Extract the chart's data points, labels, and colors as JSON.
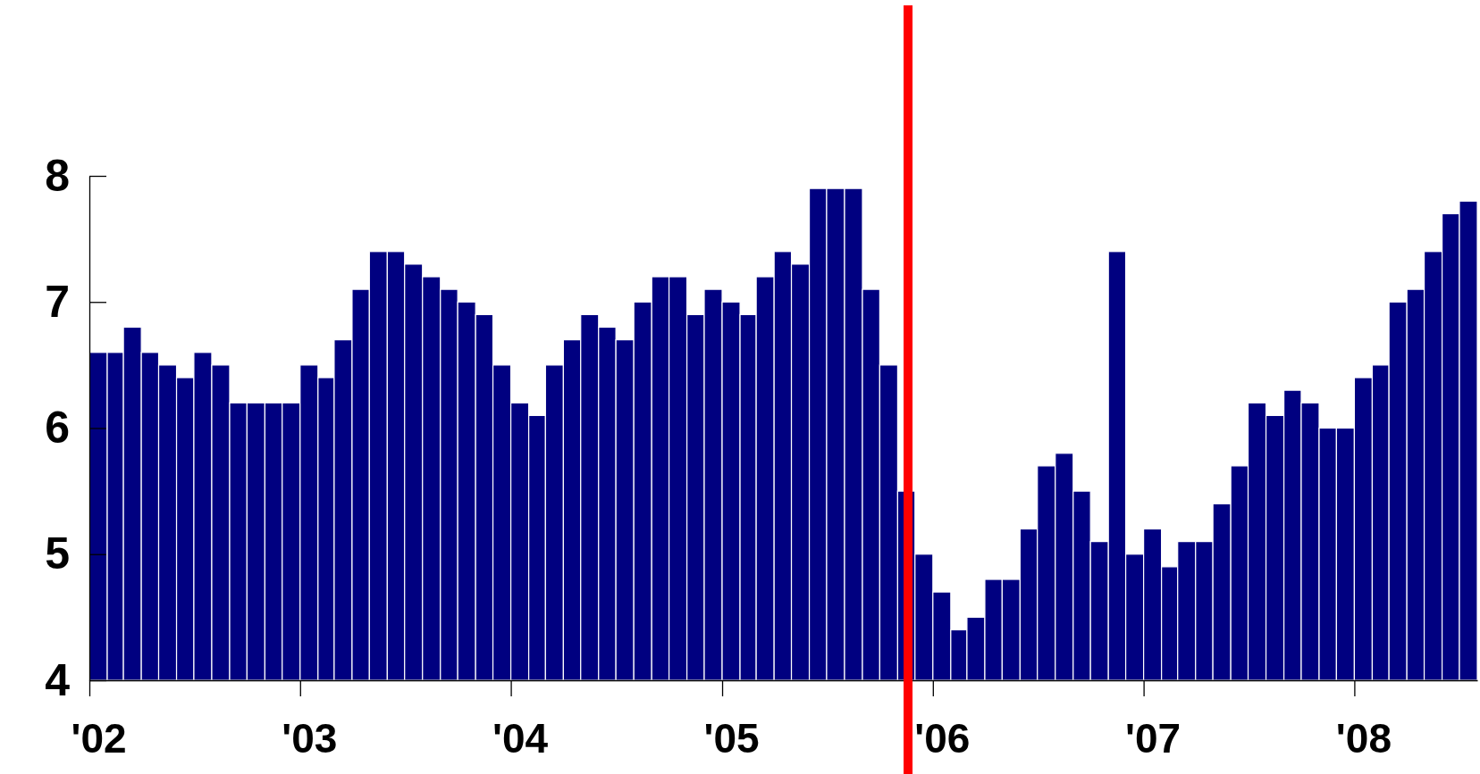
{
  "chart_data": {
    "type": "bar",
    "x": [
      "2002-01-16",
      "2002-02-15",
      "2002-03-16",
      "2002-04-16",
      "2002-05-16",
      "2002-06-16",
      "2002-07-16",
      "2002-08-16",
      "2002-09-16",
      "2002-10-16",
      "2002-11-16",
      "2002-12-16",
      "2003-01-16",
      "2003-02-15",
      "2003-03-16",
      "2003-04-16",
      "2003-05-16",
      "2003-06-16",
      "2003-07-16",
      "2003-08-16",
      "2003-09-16",
      "2003-10-16",
      "2003-11-16",
      "2003-12-16",
      "2004-01-16",
      "2004-02-15",
      "2004-03-16",
      "2004-04-16",
      "2004-05-16",
      "2004-06-16",
      "2004-07-16",
      "2004-08-16",
      "2004-09-16",
      "2004-10-16",
      "2004-11-16",
      "2004-12-16",
      "2005-01-16",
      "2005-02-15",
      "2005-03-16",
      "2005-04-16",
      "2005-05-16",
      "2005-06-16",
      "2005-07-16",
      "2005-08-16",
      "2005-09-16",
      "2005-10-16",
      "2005-11-16",
      "2005-12-16",
      "2006-01-16",
      "2006-02-15",
      "2006-03-16",
      "2006-04-16",
      "2006-05-16",
      "2006-06-16",
      "2006-07-16",
      "2006-08-16",
      "2006-09-16",
      "2006-10-16",
      "2006-11-16",
      "2006-12-16",
      "2007-01-16",
      "2007-02-15",
      "2007-03-16",
      "2007-04-16",
      "2007-05-16",
      "2007-06-16",
      "2007-07-16",
      "2007-08-16",
      "2007-09-16",
      "2007-10-16",
      "2007-11-16",
      "2007-12-16",
      "2008-01-16",
      "2008-02-15",
      "2008-03-16",
      "2008-04-16",
      "2008-05-16",
      "2008-06-16",
      "2008-07-16"
    ],
    "values": [
      6.6,
      6.6,
      6.8,
      6.6,
      6.5,
      6.4,
      6.6,
      6.5,
      6.2,
      6.2,
      6.2,
      6.2,
      6.5,
      6.4,
      6.7,
      7.1,
      7.4,
      7.4,
      7.3,
      7.2,
      7.1,
      7.0,
      6.9,
      6.5,
      6.2,
      6.1,
      6.5,
      6.7,
      6.9,
      6.8,
      6.7,
      7.0,
      7.2,
      7.2,
      6.9,
      7.1,
      7.0,
      6.9,
      7.2,
      7.4,
      7.3,
      7.9,
      7.9,
      7.9,
      7.1,
      6.5,
      5.5,
      5.0,
      4.7,
      4.4,
      4.5,
      4.8,
      4.8,
      5.2,
      5.7,
      5.8,
      5.5,
      5.1,
      7.4,
      5.0,
      5.2,
      4.9,
      5.1,
      5.1,
      5.4,
      5.7,
      6.2,
      6.1,
      6.3,
      6.2,
      6.0,
      6.0,
      6.4,
      6.5,
      7.0,
      7.1,
      7.4,
      7.7,
      7.8
    ],
    "color": "#000080",
    "xlim": [
      "2002-01",
      "2008-08"
    ],
    "xticks": [
      {
        "value": "2002",
        "label": "'02"
      },
      {
        "value": "2003",
        "label": "'03"
      },
      {
        "value": "2004",
        "label": "'04"
      },
      {
        "value": "2005",
        "label": "'05"
      },
      {
        "value": "2006",
        "label": "'06"
      },
      {
        "value": "2007",
        "label": "'07"
      },
      {
        "value": "2008",
        "label": "'08"
      }
    ],
    "ylim": [
      4,
      8
    ],
    "yticks": [
      4,
      5,
      6,
      7,
      8
    ],
    "ref_lines": [
      {
        "axis": "x",
        "value": "2005-11-19",
        "color": "#ff0000"
      }
    ],
    "grid": false
  }
}
